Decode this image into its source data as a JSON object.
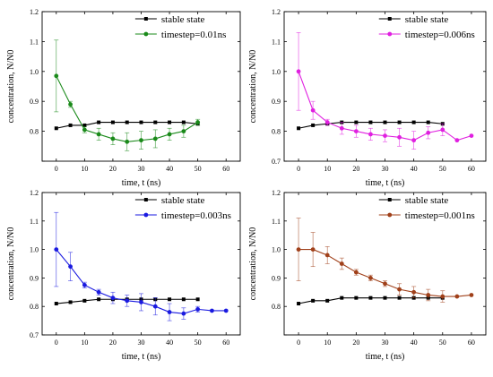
{
  "chart_data": [
    {
      "type": "line",
      "xlabel": "time, t (ns)",
      "ylabel": "concentration, N/N0",
      "xlim": [
        -5,
        65
      ],
      "ylim": [
        0.7,
        1.2
      ],
      "xticks": [
        0,
        10,
        20,
        30,
        40,
        50,
        60
      ],
      "yticks": [
        0.7,
        0.8,
        0.9,
        1.0,
        1.1,
        1.2
      ],
      "ytick_labels": [
        "",
        "0.8",
        "0.9",
        "1.0",
        "1.1",
        "1.2"
      ],
      "legend_position": "top-right",
      "series": [
        {
          "name": "stable state",
          "color": "#000000",
          "marker": "square",
          "x": [
            0,
            5,
            10,
            15,
            20,
            25,
            30,
            35,
            40,
            45,
            50
          ],
          "y": [
            0.81,
            0.82,
            0.82,
            0.83,
            0.83,
            0.83,
            0.83,
            0.83,
            0.83,
            0.83,
            0.825
          ],
          "err": []
        },
        {
          "name": "timestep=0.01ns",
          "color": "#1a8a1a",
          "marker": "circle",
          "x": [
            0,
            5,
            10,
            15,
            20,
            25,
            30,
            35,
            40,
            45,
            50
          ],
          "y": [
            0.985,
            0.89,
            0.805,
            0.79,
            0.775,
            0.765,
            0.77,
            0.775,
            0.79,
            0.8,
            0.83
          ],
          "err": [
            0.12,
            0.01,
            0.01,
            0.02,
            0.02,
            0.03,
            0.03,
            0.03,
            0.02,
            0.02,
            0.01
          ]
        }
      ]
    },
    {
      "type": "line",
      "xlabel": "time, t (ns)",
      "ylabel": "concentration, N/N0",
      "xlim": [
        -5,
        65
      ],
      "ylim": [
        0.7,
        1.2
      ],
      "xticks": [
        0,
        10,
        20,
        30,
        40,
        50,
        60
      ],
      "yticks": [
        0.7,
        0.8,
        0.9,
        1.0,
        1.1,
        1.2
      ],
      "ytick_labels": [
        "0.7",
        "0.8",
        "0.9",
        "1.0",
        "1.1",
        "1.2"
      ],
      "legend_position": "top-right",
      "series": [
        {
          "name": "stable state",
          "color": "#000000",
          "marker": "square",
          "x": [
            0,
            5,
            10,
            15,
            20,
            25,
            30,
            35,
            40,
            45,
            50
          ],
          "y": [
            0.81,
            0.82,
            0.825,
            0.83,
            0.83,
            0.83,
            0.83,
            0.83,
            0.83,
            0.83,
            0.825
          ],
          "err": []
        },
        {
          "name": "timestep=0.006ns",
          "color": "#e020e0",
          "marker": "circle",
          "x": [
            0,
            5,
            10,
            15,
            20,
            25,
            30,
            35,
            40,
            45,
            50,
            55,
            60
          ],
          "y": [
            1.0,
            0.87,
            0.83,
            0.81,
            0.8,
            0.79,
            0.785,
            0.78,
            0.77,
            0.795,
            0.805,
            0.77,
            0.785
          ],
          "err": [
            0.13,
            0.03,
            0.01,
            0.02,
            0.02,
            0.02,
            0.02,
            0.03,
            0.03,
            0.02,
            0.02,
            0.0,
            0.0
          ]
        }
      ]
    },
    {
      "type": "line",
      "xlabel": "time, t (ns)",
      "ylabel": "concentration, N/N0",
      "xlim": [
        -5,
        65
      ],
      "ylim": [
        0.7,
        1.2
      ],
      "xticks": [
        0,
        10,
        20,
        30,
        40,
        50,
        60
      ],
      "yticks": [
        0.7,
        0.8,
        0.9,
        1.0,
        1.1,
        1.2
      ],
      "ytick_labels": [
        "0.7",
        "0.8",
        "0.9",
        "1.0",
        "1.1",
        "1.2"
      ],
      "legend_position": "top-right",
      "series": [
        {
          "name": "stable state",
          "color": "#000000",
          "marker": "square",
          "x": [
            0,
            5,
            10,
            15,
            20,
            25,
            30,
            35,
            40,
            45,
            50
          ],
          "y": [
            0.81,
            0.815,
            0.82,
            0.825,
            0.825,
            0.825,
            0.825,
            0.825,
            0.825,
            0.825,
            0.825
          ],
          "err": []
        },
        {
          "name": "timestep=0.003ns",
          "color": "#1a1ae0",
          "marker": "circle",
          "x": [
            0,
            5,
            10,
            15,
            20,
            25,
            30,
            35,
            40,
            45,
            50,
            55,
            60
          ],
          "y": [
            1.0,
            0.94,
            0.875,
            0.85,
            0.83,
            0.82,
            0.815,
            0.8,
            0.78,
            0.775,
            0.79,
            0.785,
            0.785
          ],
          "err": [
            0.13,
            0.05,
            0.01,
            0.01,
            0.02,
            0.02,
            0.03,
            0.03,
            0.03,
            0.02,
            0.01,
            0.0,
            0.0
          ]
        }
      ]
    },
    {
      "type": "line",
      "xlabel": "time, t (ns)",
      "ylabel": "concentration, N/N0",
      "xlim": [
        -5,
        65
      ],
      "ylim": [
        0.7,
        1.2
      ],
      "xticks": [
        0,
        10,
        20,
        30,
        40,
        50,
        60
      ],
      "yticks": [
        0.7,
        0.8,
        0.9,
        1.0,
        1.1,
        1.2
      ],
      "ytick_labels": [
        "",
        "0.8",
        "0.9",
        "1.0",
        "1.1",
        "1.2"
      ],
      "legend_position": "top-right",
      "series": [
        {
          "name": "stable state",
          "color": "#000000",
          "marker": "square",
          "x": [
            0,
            5,
            10,
            15,
            20,
            25,
            30,
            35,
            40,
            45,
            50
          ],
          "y": [
            0.81,
            0.82,
            0.82,
            0.83,
            0.83,
            0.83,
            0.83,
            0.83,
            0.83,
            0.83,
            0.83
          ],
          "err": []
        },
        {
          "name": "timestep=0.001ns",
          "color": "#a0401a",
          "marker": "circle",
          "x": [
            0,
            5,
            10,
            15,
            20,
            25,
            30,
            35,
            40,
            45,
            50,
            55,
            60
          ],
          "y": [
            1.0,
            1.0,
            0.98,
            0.95,
            0.92,
            0.9,
            0.88,
            0.86,
            0.85,
            0.84,
            0.835,
            0.835,
            0.84
          ],
          "err": [
            0.11,
            0.06,
            0.03,
            0.02,
            0.01,
            0.01,
            0.01,
            0.02,
            0.02,
            0.02,
            0.02,
            0.0,
            0.0
          ]
        }
      ]
    }
  ]
}
